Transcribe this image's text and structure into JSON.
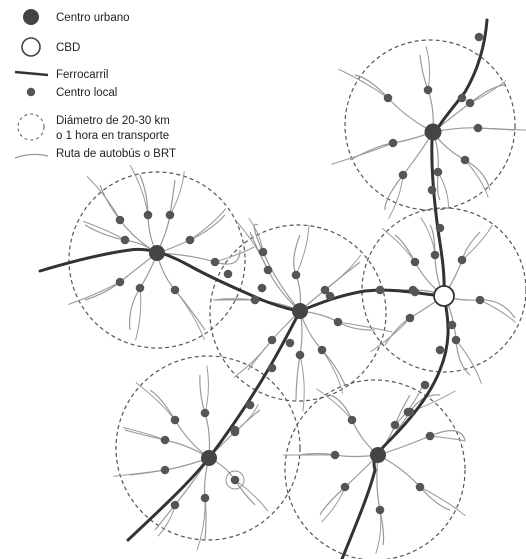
{
  "legend": {
    "items": [
      {
        "symbol": "urban-center",
        "label": "Centro urbano"
      },
      {
        "symbol": "cbd",
        "label": "CBD"
      },
      {
        "symbol": "railway",
        "label": "Ferrocarril"
      },
      {
        "symbol": "local-center",
        "label": "Centro local"
      },
      {
        "symbol": "catchment-circle",
        "label": "Diámetro de 20-30 km"
      },
      {
        "symbol": "catchment-circle-cont",
        "label": "o 1 hora en transporte"
      },
      {
        "symbol": "bus-route",
        "label": "Ruta de autobús o BRT"
      }
    ]
  },
  "colors": {
    "urban_center": "#444444",
    "local_center": "#555555",
    "railway": "#333333",
    "bus_route": "#9a9a9a",
    "circle": "#555555",
    "cbd_fill": "#ffffff"
  }
}
